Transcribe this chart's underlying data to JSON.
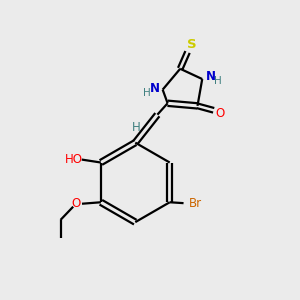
{
  "background_color": "#ebebeb",
  "atom_colors": {
    "C": "#000000",
    "N": "#0000cc",
    "O": "#ff0000",
    "S": "#cccc00",
    "Br": "#cc6600",
    "H": "#408080"
  },
  "figsize": [
    3.0,
    3.0
  ],
  "dpi": 100
}
